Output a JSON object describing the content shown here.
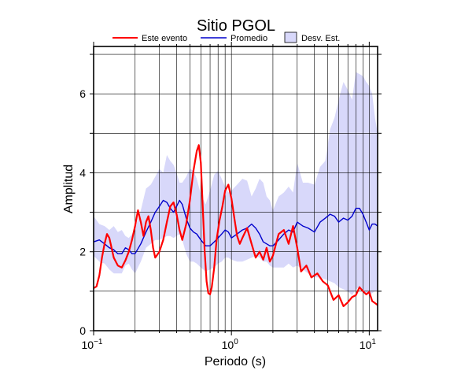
{
  "chart_data": {
    "type": "line",
    "title": "Sitio PGOL",
    "xlabel": "Periodo (s)",
    "ylabel": "Amplitud",
    "xscale": "log",
    "xlim": [
      0.1,
      11.5
    ],
    "ylim": [
      0,
      7.2
    ],
    "grid": true,
    "legend_position": "top",
    "x_ticks": [
      {
        "value": 0.1,
        "base": "10",
        "exp": "−1"
      },
      {
        "value": 1,
        "base": "10",
        "exp": "0"
      },
      {
        "value": 10,
        "base": "10",
        "exp": "1"
      }
    ],
    "y_ticks": [
      0,
      2,
      4,
      6
    ],
    "legend": [
      {
        "label": "Este evento",
        "kind": "line",
        "color": "#ff0000"
      },
      {
        "label": "Promedio",
        "kind": "line",
        "color": "#0000cc"
      },
      {
        "label": "Desv. Est.",
        "kind": "box",
        "color": "#d8d8fa"
      }
    ],
    "series": [
      {
        "name": "Este evento",
        "color": "#ff0000",
        "x": [
          0.1,
          0.105,
          0.11,
          0.115,
          0.12,
          0.125,
          0.13,
          0.135,
          0.14,
          0.15,
          0.16,
          0.17,
          0.18,
          0.19,
          0.2,
          0.21,
          0.22,
          0.23,
          0.24,
          0.25,
          0.26,
          0.27,
          0.28,
          0.3,
          0.32,
          0.34,
          0.36,
          0.38,
          0.4,
          0.42,
          0.44,
          0.47,
          0.5,
          0.53,
          0.56,
          0.58,
          0.6,
          0.62,
          0.64,
          0.66,
          0.68,
          0.7,
          0.72,
          0.75,
          0.78,
          0.82,
          0.86,
          0.9,
          0.95,
          1.0,
          1.05,
          1.1,
          1.15,
          1.2,
          1.3,
          1.4,
          1.5,
          1.6,
          1.7,
          1.8,
          1.9,
          2.0,
          2.2,
          2.4,
          2.6,
          2.8,
          3.0,
          3.2,
          3.5,
          3.8,
          4.2,
          4.6,
          5.0,
          5.5,
          6.0,
          6.5,
          7.0,
          7.5,
          8.0,
          8.5,
          9.0,
          9.5,
          10.0,
          10.5,
          11.0,
          11.5
        ],
        "values": [
          1.08,
          1.12,
          1.4,
          1.85,
          2.2,
          2.45,
          2.35,
          2.1,
          1.85,
          1.65,
          1.6,
          1.78,
          2.0,
          2.3,
          2.65,
          3.05,
          2.75,
          2.4,
          2.75,
          2.9,
          2.55,
          2.1,
          1.85,
          2.0,
          2.3,
          2.75,
          3.15,
          3.25,
          2.95,
          2.55,
          2.3,
          2.7,
          3.3,
          4.05,
          4.55,
          4.7,
          4.25,
          3.1,
          2.0,
          1.25,
          0.95,
          0.92,
          1.1,
          1.6,
          2.3,
          2.8,
          3.15,
          3.55,
          3.7,
          3.35,
          2.85,
          2.4,
          2.2,
          2.35,
          2.6,
          2.2,
          1.85,
          2.0,
          1.8,
          2.1,
          1.75,
          1.9,
          2.45,
          2.55,
          2.2,
          2.65,
          2.1,
          1.5,
          1.65,
          1.35,
          1.45,
          1.25,
          1.15,
          0.78,
          0.9,
          0.62,
          0.72,
          0.85,
          0.9,
          1.1,
          1.0,
          0.92,
          0.98,
          0.75,
          0.7,
          0.65
        ]
      },
      {
        "name": "Promedio",
        "color": "#0000cc",
        "x": [
          0.1,
          0.11,
          0.12,
          0.13,
          0.14,
          0.15,
          0.16,
          0.17,
          0.18,
          0.19,
          0.2,
          0.22,
          0.24,
          0.26,
          0.28,
          0.3,
          0.32,
          0.34,
          0.36,
          0.38,
          0.4,
          0.42,
          0.44,
          0.47,
          0.5,
          0.53,
          0.56,
          0.6,
          0.65,
          0.7,
          0.75,
          0.8,
          0.85,
          0.9,
          0.95,
          1.0,
          1.1,
          1.2,
          1.3,
          1.4,
          1.5,
          1.6,
          1.7,
          1.8,
          1.9,
          2.0,
          2.2,
          2.4,
          2.6,
          2.8,
          3.0,
          3.3,
          3.6,
          4.0,
          4.4,
          4.8,
          5.2,
          5.6,
          6.0,
          6.5,
          7.0,
          7.5,
          8.0,
          8.5,
          9.0,
          9.5,
          10.0,
          10.5,
          11.0,
          11.5
        ],
        "values": [
          2.25,
          2.3,
          2.2,
          2.1,
          2.05,
          1.95,
          1.95,
          2.1,
          2.05,
          1.95,
          1.95,
          2.2,
          2.5,
          2.75,
          3.0,
          3.15,
          3.3,
          3.25,
          3.1,
          3.0,
          3.15,
          3.3,
          3.2,
          2.85,
          2.6,
          2.5,
          2.45,
          2.3,
          2.15,
          2.15,
          2.25,
          2.35,
          2.45,
          2.55,
          2.5,
          2.35,
          2.45,
          2.55,
          2.6,
          2.7,
          2.6,
          2.45,
          2.25,
          2.2,
          2.15,
          2.15,
          2.3,
          2.45,
          2.55,
          2.5,
          2.75,
          2.65,
          2.6,
          2.5,
          2.75,
          2.85,
          2.95,
          2.9,
          2.75,
          2.85,
          2.8,
          2.9,
          3.1,
          3.1,
          2.95,
          2.75,
          2.55,
          2.7,
          2.7,
          2.65
        ]
      }
    ],
    "std_band": {
      "name": "Desv. Est.",
      "color": "#d8d8fa",
      "x": [
        0.1,
        0.11,
        0.12,
        0.13,
        0.14,
        0.15,
        0.16,
        0.17,
        0.18,
        0.19,
        0.2,
        0.22,
        0.24,
        0.26,
        0.28,
        0.3,
        0.32,
        0.34,
        0.36,
        0.38,
        0.4,
        0.42,
        0.44,
        0.47,
        0.5,
        0.53,
        0.56,
        0.6,
        0.65,
        0.7,
        0.75,
        0.8,
        0.85,
        0.9,
        0.95,
        1.0,
        1.1,
        1.2,
        1.3,
        1.4,
        1.5,
        1.6,
        1.7,
        1.8,
        1.9,
        2.0,
        2.2,
        2.4,
        2.6,
        2.8,
        3.0,
        3.3,
        3.6,
        4.0,
        4.4,
        4.8,
        5.2,
        5.6,
        6.0,
        6.5,
        7.0,
        7.5,
        8.0,
        8.5,
        9.0,
        9.5,
        10.0,
        10.5,
        11.0,
        11.5
      ],
      "upper": [
        2.9,
        2.7,
        2.65,
        2.55,
        2.65,
        2.5,
        2.55,
        2.4,
        2.35,
        2.45,
        2.6,
        3.05,
        3.6,
        3.7,
        3.9,
        4.1,
        4.0,
        4.45,
        4.3,
        4.2,
        4.0,
        3.75,
        3.75,
        3.9,
        4.1,
        4.05,
        3.85,
        3.45,
        3.2,
        3.55,
        3.95,
        4.05,
        3.85,
        3.65,
        3.5,
        3.55,
        3.7,
        3.85,
        3.8,
        3.4,
        3.6,
        3.85,
        3.75,
        3.4,
        3.3,
        3.05,
        3.4,
        3.5,
        3.65,
        3.5,
        4.25,
        3.75,
        3.75,
        3.7,
        4.15,
        4.3,
        5.1,
        5.4,
        5.85,
        6.3,
        6.1,
        5.85,
        6.55,
        6.5,
        6.45,
        6.3,
        6.2,
        6.0,
        5.4,
        5.0
      ],
      "lower": [
        1.9,
        1.75,
        1.7,
        1.55,
        1.45,
        1.45,
        1.45,
        1.65,
        1.7,
        1.55,
        1.45,
        1.75,
        2.1,
        2.2,
        2.3,
        2.3,
        2.35,
        2.4,
        2.4,
        2.35,
        2.4,
        2.45,
        2.3,
        1.95,
        1.75,
        1.75,
        1.7,
        1.6,
        1.5,
        1.55,
        1.6,
        1.7,
        1.75,
        1.85,
        1.85,
        1.8,
        1.75,
        1.75,
        1.8,
        1.85,
        1.9,
        1.85,
        1.75,
        1.75,
        1.65,
        1.6,
        1.6,
        1.6,
        1.7,
        1.6,
        1.65,
        1.55,
        1.45,
        1.35,
        1.35,
        1.3,
        1.25,
        1.2,
        1.1,
        1.05,
        1.0,
        0.9,
        1.05,
        1.1,
        1.0,
        0.95,
        0.9,
        0.95,
        1.0,
        1.0
      ]
    }
  }
}
